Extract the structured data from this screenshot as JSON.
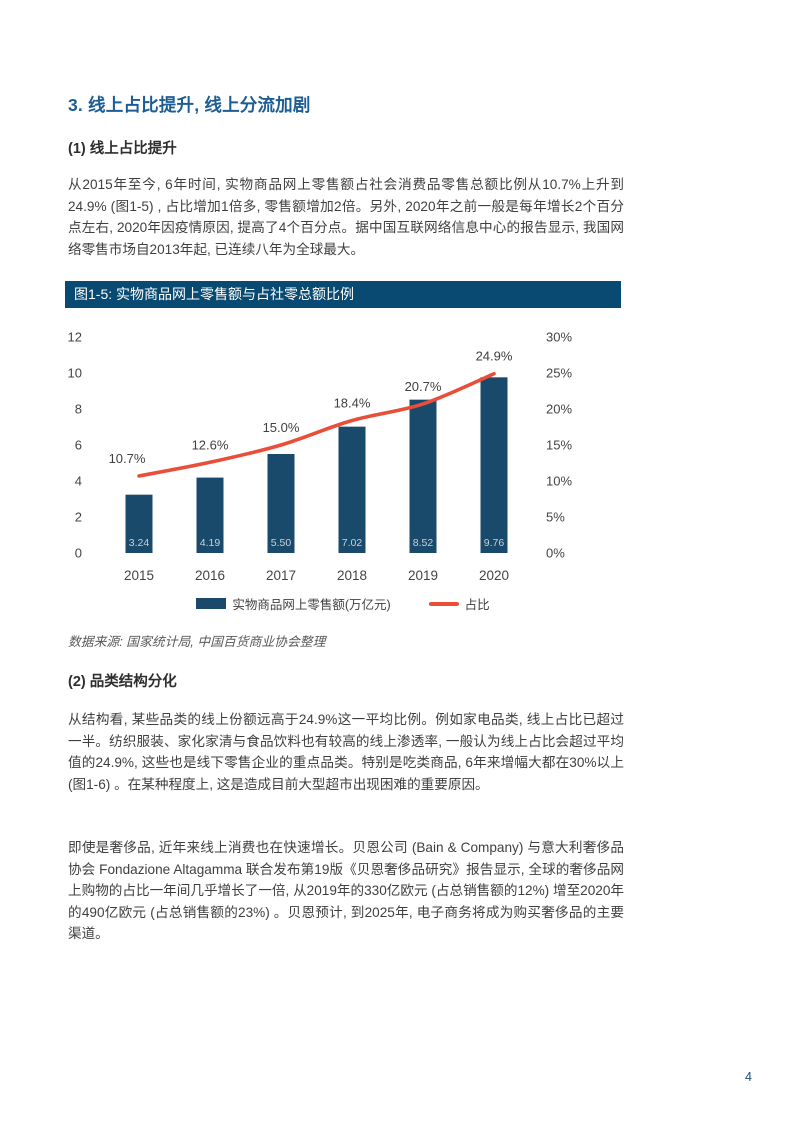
{
  "page": {
    "number": "4"
  },
  "headings": {
    "section": "3. 线上占比提升, 线上分流加剧",
    "sub1": "(1) 线上占比提升",
    "sub2": "(2) 品类结构分化"
  },
  "paragraphs": {
    "p1": "从2015年至今, 6年时间, 实物商品网上零售额占社会消费品零售总额比例从10.7%上升到24.9% (图1-5) , 占比增加1倍多, 零售额增加2倍。另外, 2020年之前一般是每年增长2个百分点左右, 2020年因疫情原因, 提高了4个百分点。据中国互联网络信息中心的报告显示, 我国网络零售市场自2013年起, 已连续八年为全球最大。",
    "p2": "从结构看, 某些品类的线上份额远高于24.9%这一平均比例。例如家电品类, 线上占比已超过一半。纺织服装、家化家清与食品饮料也有较高的线上渗透率, 一般认为线上占比会超过平均值的24.9%, 这些也是线下零售企业的重点品类。特别是吃类商品, 6年来增幅大都在30%以上 (图1-6) 。在某种程度上, 这是造成目前大型超市出现困难的重要原因。",
    "p3": "即使是奢侈品, 近年来线上消费也在快速增长。贝恩公司 (Bain & Company) 与意大利奢侈品协会 Fondazione Altagamma 联合发布第19版《贝恩奢侈品研究》报告显示, 全球的奢侈品网上购物的占比一年间几乎增长了一倍, 从2019年的330亿欧元 (占总销售额的12%) 增至2020年的490亿欧元 (占总销售额的23%) 。贝恩预计, 到2025年, 电子商务将成为购买奢侈品的主要渠道。"
  },
  "figure": {
    "title": "图1-5: 实物商品网上零售额与占社零总额比例",
    "source": "数据来源: 国家统计局, 中国百货商业协会整理"
  },
  "chart_data": {
    "type": "bar",
    "subtype": "combo-bar-line",
    "title": "图1-5: 实物商品网上零售额与占社零总额比例",
    "categories": [
      "2015",
      "2016",
      "2017",
      "2018",
      "2019",
      "2020"
    ],
    "series": [
      {
        "name": "实物商品网上零售额(万亿元)",
        "type": "bar",
        "axis": "left",
        "values": [
          3.24,
          4.19,
          5.5,
          7.02,
          8.52,
          9.76
        ],
        "labels": [
          "3.24",
          "4.19",
          "5.50",
          "7.02",
          "8.52",
          "9.76"
        ],
        "color": "#1a4a6b",
        "label_color": "#c6d1da"
      },
      {
        "name": "占比",
        "type": "line",
        "axis": "right",
        "values": [
          10.7,
          12.6,
          15.0,
          18.4,
          20.7,
          24.9
        ],
        "labels": [
          "10.7%",
          "12.6%",
          "15.0%",
          "18.4%",
          "20.7%",
          "24.9%"
        ],
        "color": "#e94f38",
        "label_color": "#404040"
      }
    ],
    "left_axis": {
      "min": 0,
      "max": 12,
      "tick_values": [
        0,
        2,
        4,
        6,
        8,
        10,
        12
      ],
      "tick_labels": [
        "0",
        "2",
        "4",
        "6",
        "8",
        "10",
        "12"
      ]
    },
    "right_axis": {
      "min": 0,
      "max": 30,
      "tick_values": [
        0,
        5,
        10,
        15,
        20,
        25,
        30
      ],
      "tick_labels": [
        "0%",
        "5%",
        "10%",
        "15%",
        "20%",
        "25%",
        "30%"
      ]
    },
    "grid": false,
    "legend_position": "bottom"
  },
  "colors": {
    "heading_blue": "#1c5d94",
    "figure_header_bg": "#084a72",
    "bar": "#1a4a6b",
    "line": "#e94f38",
    "body_text": "#3f3f3f",
    "page_number": "#1f4e79"
  }
}
